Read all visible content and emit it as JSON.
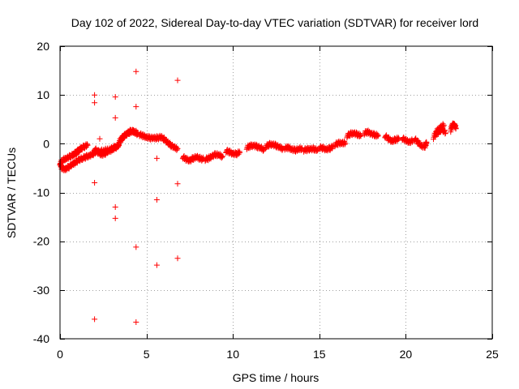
{
  "chart_data": {
    "type": "scatter",
    "title": "Day 102 of 2022, Sidereal Day-to-day VTEC variation (SDTVAR) for receiver lord",
    "xlabel": "GPS time / hours",
    "ylabel": "SDTVAR / TECUs",
    "xlim": [
      0,
      25
    ],
    "ylim": [
      -40,
      20
    ],
    "grid": true,
    "x_ticks": [
      0,
      5,
      10,
      15,
      20,
      25
    ],
    "y_ticks": [
      -40,
      -30,
      -20,
      -10,
      0,
      10,
      20
    ],
    "x_tick_labels": [
      "0",
      "5",
      "10",
      "15",
      "20",
      "25"
    ],
    "y_tick_labels": [
      "-40",
      "-30",
      "-20",
      "-10",
      "0",
      "10",
      "20"
    ],
    "marker": "+",
    "series": [
      {
        "name": "SDTVAR",
        "color": "#ff0000",
        "dense_tracks": [
          {
            "x": [
              0.0,
              0.2,
              0.4,
              0.6,
              0.8,
              1.0,
              1.2
            ],
            "y": [
              -4.0,
              -3.3,
              -2.9,
              -2.6,
              -2.2,
              -1.7,
              -1.0
            ]
          },
          {
            "x": [
              0.0,
              0.1,
              0.3,
              0.5,
              0.7,
              0.9,
              1.1,
              1.3,
              1.5,
              1.7,
              1.9,
              2.1,
              2.3
            ],
            "y": [
              -4.0,
              -5.0,
              -5.2,
              -4.8,
              -4.3,
              -3.8,
              -3.3,
              -3.0,
              -2.7,
              -2.4,
              -2.1,
              -1.7,
              -1.4
            ]
          },
          {
            "x": [
              0.8,
              1.0,
              1.2,
              1.4,
              1.6
            ],
            "y": [
              -2.2,
              -1.6,
              -1.0,
              -0.6,
              -0.3
            ]
          },
          {
            "x": [
              2.0,
              2.2,
              2.4,
              2.6,
              2.8,
              3.0,
              3.2,
              3.4
            ],
            "y": [
              -1.0,
              -1.8,
              -2.2,
              -2.0,
              -1.6,
              -1.2,
              -0.8,
              -0.3
            ]
          },
          {
            "x": [
              2.3,
              2.6,
              2.9,
              3.2,
              3.4
            ],
            "y": [
              -1.6,
              -1.4,
              -1.0,
              -0.7,
              -0.4
            ]
          },
          {
            "x": [
              3.4,
              3.6,
              3.8,
              4.0,
              4.2,
              4.4,
              4.5
            ],
            "y": [
              0.3,
              1.2,
              1.9,
              2.3,
              2.5,
              2.3,
              1.9
            ]
          },
          {
            "x": [
              3.5,
              3.7,
              3.9,
              4.1,
              4.3
            ],
            "y": [
              0.6,
              1.6,
              2.2,
              2.6,
              2.4
            ]
          },
          {
            "x": [
              4.6,
              4.8,
              5.0,
              5.2,
              5.4,
              5.6,
              5.8
            ],
            "y": [
              1.9,
              1.6,
              1.4,
              1.2,
              1.1,
              1.2,
              1.3
            ]
          },
          {
            "x": [
              5.8,
              6.0,
              6.2,
              6.4,
              6.6,
              6.8
            ],
            "y": [
              1.4,
              1.0,
              0.4,
              -0.3,
              -0.8,
              -1.0
            ]
          },
          {
            "x": [
              7.1,
              7.3,
              7.5,
              7.7,
              7.9,
              8.1,
              8.3
            ],
            "y": [
              -2.7,
              -3.2,
              -3.4,
              -3.0,
              -2.8,
              -3.0,
              -3.2
            ]
          },
          {
            "x": [
              8.4,
              8.6,
              8.8,
              9.0,
              9.2,
              9.4
            ],
            "y": [
              -3.2,
              -3.0,
              -2.5,
              -2.2,
              -2.4,
              -2.6
            ]
          },
          {
            "x": [
              9.6,
              9.8,
              10.0,
              10.2,
              10.4
            ],
            "y": [
              -1.5,
              -1.7,
              -2.0,
              -2.1,
              -1.8
            ]
          },
          {
            "x": [
              10.8,
              11.0,
              11.2,
              11.4,
              11.6,
              11.8
            ],
            "y": [
              -0.8,
              -0.5,
              -0.3,
              -0.6,
              -0.9,
              -1.2
            ]
          },
          {
            "x": [
              11.9,
              12.1,
              12.3,
              12.5,
              12.7,
              12.9
            ],
            "y": [
              -0.6,
              -0.2,
              -0.1,
              -0.4,
              -0.8,
              -1.0
            ]
          },
          {
            "x": [
              13.0,
              13.2,
              13.4,
              13.6,
              13.8,
              14.0
            ],
            "y": [
              -0.9,
              -0.8,
              -1.1,
              -1.3,
              -1.2,
              -0.9
            ]
          },
          {
            "x": [
              14.1,
              14.3,
              14.5,
              14.7,
              14.9
            ],
            "y": [
              -1.3,
              -1.2,
              -1.0,
              -1.1,
              -1.4
            ]
          },
          {
            "x": [
              15.0,
              15.2,
              15.4,
              15.6,
              15.8
            ],
            "y": [
              -0.8,
              -0.9,
              -1.1,
              -1.0,
              -0.6
            ]
          },
          {
            "x": [
              15.9,
              16.1,
              16.3,
              16.5
            ],
            "y": [
              -0.2,
              0.1,
              0.2,
              0.1
            ]
          },
          {
            "x": [
              16.6,
              16.8,
              17.0,
              17.2,
              17.4
            ],
            "y": [
              1.6,
              2.0,
              2.2,
              1.9,
              1.6
            ]
          },
          {
            "x": [
              17.6,
              17.8,
              18.0,
              18.2,
              18.4
            ],
            "y": [
              2.2,
              2.4,
              2.1,
              1.8,
              1.6
            ]
          },
          {
            "x": [
              18.8,
              19.0,
              19.2,
              19.4,
              19.6
            ],
            "y": [
              1.6,
              1.0,
              0.6,
              0.8,
              1.0
            ]
          },
          {
            "x": [
              19.8,
              20.0,
              20.2,
              20.4
            ],
            "y": [
              1.1,
              0.7,
              0.4,
              0.6
            ]
          },
          {
            "x": [
              20.5,
              20.7,
              20.9,
              21.1,
              21.2
            ],
            "y": [
              1.0,
              0.3,
              -0.4,
              -0.6,
              0.2
            ]
          },
          {
            "x": [
              21.6,
              21.8,
              22.0,
              22.2
            ],
            "y": [
              1.3,
              2.6,
              3.4,
              3.8
            ]
          },
          {
            "x": [
              21.7,
              21.9,
              22.1,
              22.3
            ],
            "y": [
              1.8,
              2.4,
              3.0,
              2.2
            ]
          },
          {
            "x": [
              22.6,
              22.7,
              22.8,
              22.9
            ],
            "y": [
              2.8,
              3.8,
              4.0,
              3.2
            ]
          }
        ],
        "outliers": {
          "x": [
            2.0,
            2.0,
            2.0,
            2.0,
            3.2,
            3.2,
            3.2,
            3.2,
            4.4,
            4.4,
            4.4,
            4.4,
            5.6,
            5.6,
            5.6,
            6.8,
            6.8,
            6.8,
            2.3
          ],
          "y": [
            10.0,
            8.4,
            -8.0,
            -36.0,
            9.6,
            5.3,
            -13.0,
            -15.3,
            14.8,
            7.6,
            -21.2,
            -36.6,
            -3.0,
            -11.5,
            -24.9,
            13.0,
            -8.2,
            -23.5,
            1.0
          ]
        }
      }
    ]
  }
}
